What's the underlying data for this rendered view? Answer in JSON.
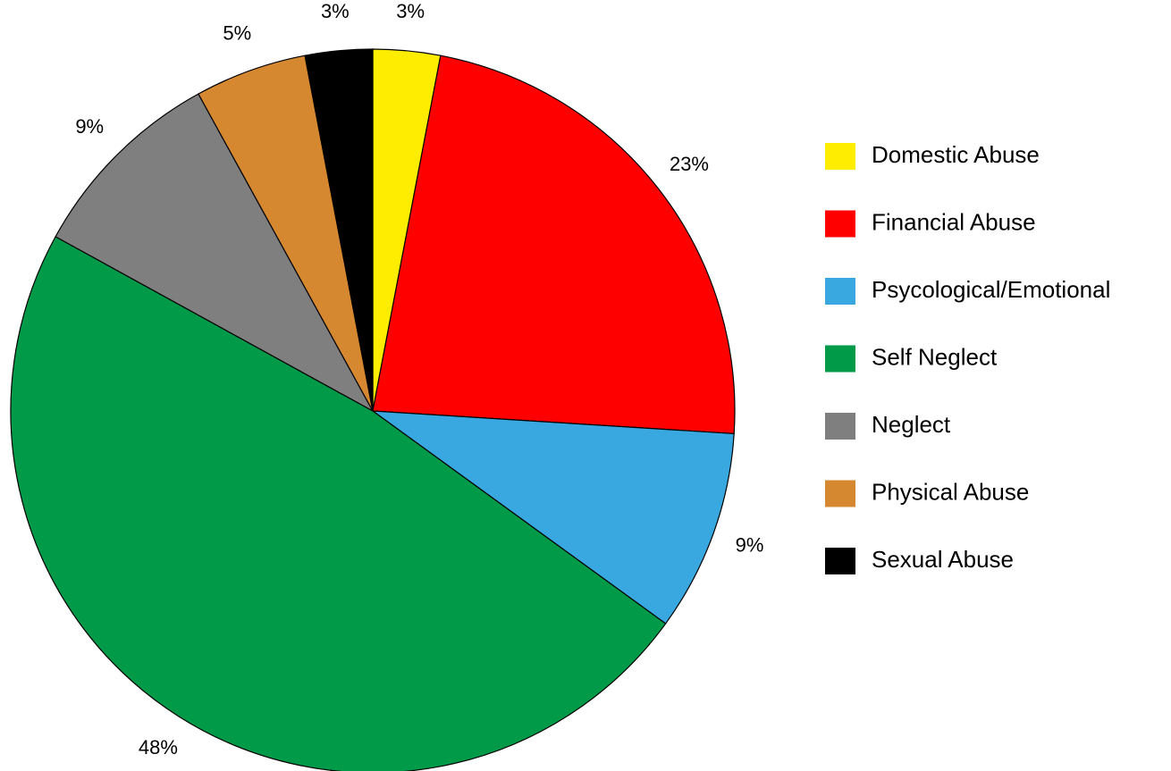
{
  "chart_data": {
    "type": "pie",
    "categories": [
      "Domestic Abuse",
      "Financial Abuse",
      "Psycological/Emotional",
      "Self Neglect",
      "Neglect",
      "Physical Abuse",
      "Sexual Abuse"
    ],
    "values": [
      3,
      23,
      9,
      48,
      9,
      5,
      3
    ],
    "value_labels": [
      "3%",
      "23%",
      "9%",
      "48%",
      "9%",
      "5%",
      "3%"
    ],
    "colors": [
      "#ffed00",
      "#ff0000",
      "#3aa8e0",
      "#009a49",
      "#7f7f7f",
      "#d68831",
      "#000000"
    ],
    "legend": "right"
  }
}
